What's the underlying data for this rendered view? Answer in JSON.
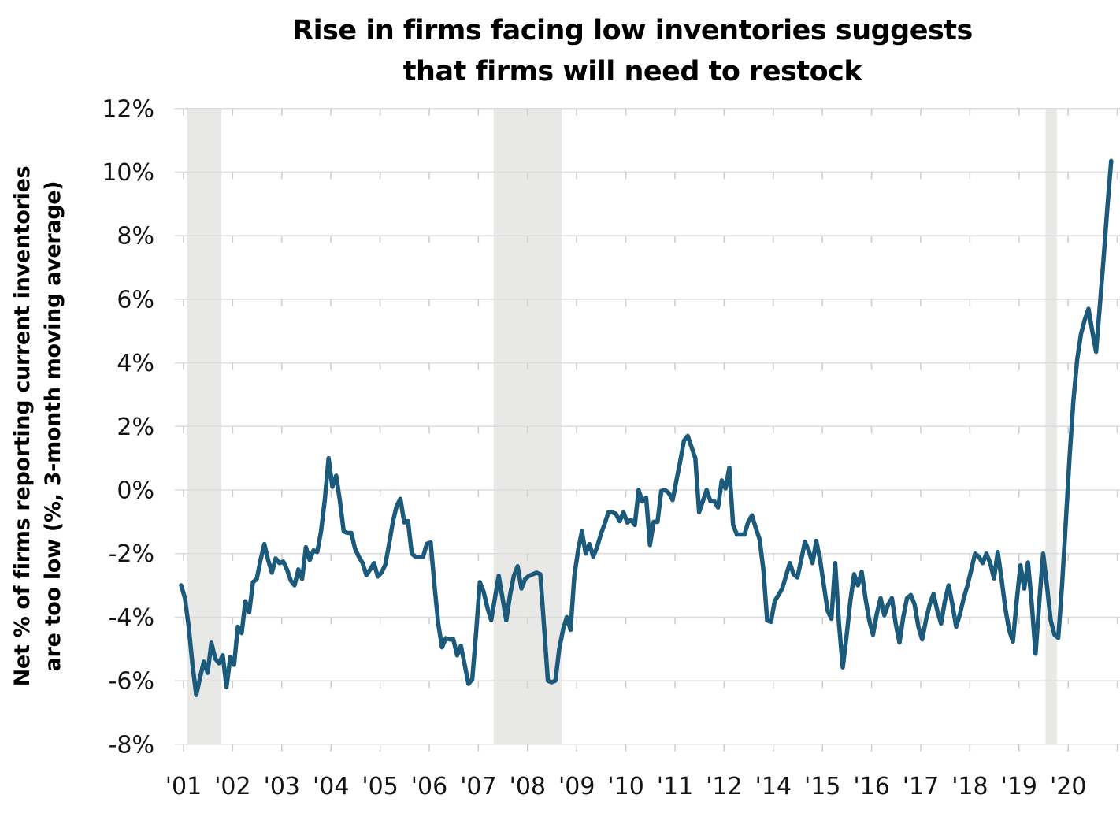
{
  "title": {
    "line1": "Rise in firms facing low inventories suggests",
    "line2": "that firms will need to restock"
  },
  "y_axis": {
    "title_line1": "Net % of firms reporting current inventories",
    "title_line2": "are too low (%, 3-month moving average)",
    "ticks": [
      {
        "label": "12%",
        "value": 12
      },
      {
        "label": "10%",
        "value": 10
      },
      {
        "label": "8%",
        "value": 8
      },
      {
        "label": "6%",
        "value": 6
      },
      {
        "label": "4%",
        "value": 4
      },
      {
        "label": "2%",
        "value": 2
      },
      {
        "label": "0%",
        "value": 0
      },
      {
        "label": "-2%",
        "value": -2
      },
      {
        "label": "-4%",
        "value": -4
      },
      {
        "label": "-6%",
        "value": -6
      },
      {
        "label": "-8%",
        "value": -8
      }
    ]
  },
  "x_axis": {
    "labels": [
      "'01",
      "'02",
      "'03",
      "'04",
      "'05",
      "'06",
      "'07",
      "'08",
      "'09",
      "'10",
      "'11",
      "'12",
      "'14",
      "'15",
      "'16",
      "'17",
      "'18",
      "'19",
      "'20"
    ]
  },
  "chart_data": {
    "type": "line",
    "title": "Rise in firms facing low inventories suggests that firms will need to restock",
    "xlabel": "",
    "ylabel": "Net % of firms reporting current inventories are too low (%, 3-month moving average)",
    "ylim": [
      -8,
      12
    ],
    "grid": "horizontal",
    "legend_position": "none",
    "line_color": "#1B5A7B",
    "recession_band_color": "#E8E8E6",
    "frequency": "monthly",
    "start_date": "2001-01",
    "end_date": "2021-07",
    "values": [
      -3.0,
      -3.4,
      -4.3,
      -5.5,
      -6.45,
      -5.9,
      -5.4,
      -5.75,
      -4.8,
      -5.3,
      -5.45,
      -5.2,
      -6.2,
      -5.25,
      -5.5,
      -4.3,
      -4.5,
      -3.5,
      -3.85,
      -2.9,
      -2.8,
      -2.2,
      -1.7,
      -2.2,
      -2.6,
      -2.15,
      -2.3,
      -2.25,
      -2.5,
      -2.85,
      -3.0,
      -2.5,
      -2.8,
      -1.8,
      -2.2,
      -1.9,
      -1.95,
      -1.3,
      -0.3,
      1.0,
      0.1,
      0.45,
      -0.35,
      -1.3,
      -1.35,
      -1.35,
      -1.85,
      -2.1,
      -2.3,
      -2.68,
      -2.5,
      -2.3,
      -2.72,
      -2.6,
      -2.35,
      -1.7,
      -1.0,
      -0.5,
      -0.28,
      -1.02,
      -0.98,
      -2.0,
      -2.1,
      -2.1,
      -2.1,
      -1.69,
      -1.65,
      -3.0,
      -4.2,
      -4.95,
      -4.66,
      -4.7,
      -4.7,
      -5.2,
      -4.9,
      -5.5,
      -6.1,
      -5.95,
      -4.5,
      -2.9,
      -3.2,
      -3.7,
      -4.1,
      -3.4,
      -2.7,
      -3.4,
      -4.1,
      -3.3,
      -2.7,
      -2.4,
      -3.1,
      -2.8,
      -2.7,
      -2.65,
      -2.6,
      -2.65,
      -4.3,
      -6.0,
      -6.05,
      -6.0,
      -5.0,
      -4.4,
      -4.0,
      -4.4,
      -2.7,
      -1.9,
      -1.3,
      -2.0,
      -1.7,
      -2.1,
      -1.8,
      -1.4,
      -1.07,
      -0.71,
      -0.7,
      -0.75,
      -0.98,
      -0.7,
      -1.02,
      -0.94,
      -1.1,
      0.0,
      -0.36,
      -0.24,
      -1.73,
      -1.0,
      -1.0,
      -0.03,
      0.0,
      -0.1,
      -0.32,
      0.3,
      0.9,
      1.55,
      1.7,
      1.35,
      1.0,
      -0.7,
      -0.35,
      0.0,
      -0.35,
      -0.35,
      -0.55,
      0.3,
      0.05,
      0.7,
      -1.1,
      -1.4,
      -1.4,
      -1.4,
      -1.0,
      -0.8,
      -1.2,
      -1.55,
      -2.5,
      -4.1,
      -4.15,
      -3.5,
      -3.3,
      -3.1,
      -2.7,
      -2.3,
      -2.65,
      -2.75,
      -2.2,
      -1.63,
      -1.9,
      -2.3,
      -1.6,
      -2.2,
      -3.0,
      -3.8,
      -4.05,
      -2.3,
      -4.2,
      -5.58,
      -4.6,
      -3.5,
      -2.65,
      -3.0,
      -2.57,
      -3.4,
      -4.1,
      -4.55,
      -3.9,
      -3.4,
      -3.94,
      -3.6,
      -3.4,
      -4.2,
      -4.8,
      -4.0,
      -3.4,
      -3.3,
      -3.6,
      -4.3,
      -4.7,
      -4.1,
      -3.6,
      -3.27,
      -3.8,
      -4.2,
      -3.5,
      -3.0,
      -3.6,
      -4.3,
      -3.9,
      -3.4,
      -3.0,
      -2.5,
      -2.0,
      -2.1,
      -2.3,
      -2.0,
      -2.3,
      -2.78,
      -1.95,
      -2.8,
      -3.72,
      -4.4,
      -4.77,
      -3.5,
      -2.37,
      -3.1,
      -2.28,
      -3.6,
      -5.15,
      -3.5,
      -2.0,
      -3.0,
      -4.1,
      -4.55,
      -4.65,
      -3.0,
      -1.0,
      1.05,
      2.8,
      4.1,
      4.9,
      5.35,
      5.7,
      5.0,
      4.35,
      5.8,
      7.3,
      8.9,
      10.35
    ],
    "recession_bands": [
      {
        "start": "2001-03",
        "end": "2001-12"
      },
      {
        "start": "2007-12",
        "end": "2009-06"
      },
      {
        "start": "2020-02",
        "end": "2020-05"
      }
    ]
  }
}
